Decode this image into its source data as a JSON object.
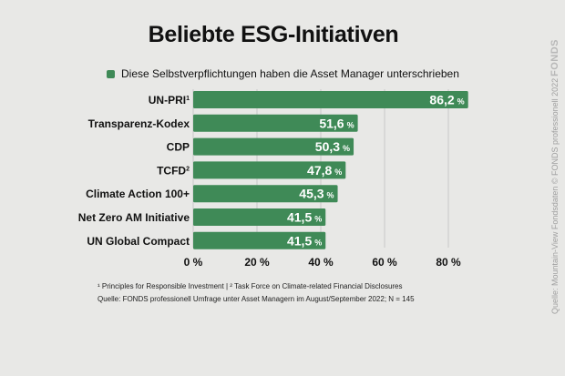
{
  "title": "Beliebte ESG-Initiativen",
  "legend": {
    "label": "Diese Selbstverpflichtungen haben die Asset Manager unterschrieben"
  },
  "colors": {
    "bar": "#3f8a57",
    "background": "#e8e8e6",
    "grid": "#c8c8c8"
  },
  "chart_data": {
    "type": "bar",
    "orientation": "horizontal",
    "title": "Beliebte ESG-Initiativen",
    "categories": [
      "UN-PRI",
      "Transparenz-Kodex",
      "CDP",
      "TCFD",
      "Climate Action 100+",
      "Net Zero AM Initiative",
      "UN Global Compact"
    ],
    "category_superscripts": [
      "1",
      "",
      "",
      "2",
      "",
      "",
      ""
    ],
    "series": [
      {
        "name": "Diese Selbstverpflichtungen haben die Asset Manager unterschrieben",
        "values": [
          86.2,
          51.6,
          50.3,
          47.8,
          45.3,
          41.5,
          41.5
        ],
        "value_labels": [
          "86,2",
          "51,6",
          "50,3",
          "47,8",
          "45,3",
          "41,5",
          "41,5"
        ]
      }
    ],
    "value_unit": "%",
    "xlim": [
      0,
      90
    ],
    "xticks": [
      0,
      20,
      40,
      60,
      80
    ],
    "xtick_labels": [
      "0 %",
      "20 %",
      "40 %",
      "60 %",
      "80 %"
    ],
    "grid": true,
    "legend_position": "top"
  },
  "footnotes": {
    "line1": "¹ Principles for Responsible Investment | ² Task Force on Climate-related Financial Disclosures",
    "line2": "Quelle: FONDS professionell Umfrage unter Asset Managern im August/September 2022; N = 145"
  },
  "side": {
    "source": "Quelle: Mountain-View Fondsdaten  © FONDS professionell 2022",
    "logo": "FONDS"
  }
}
